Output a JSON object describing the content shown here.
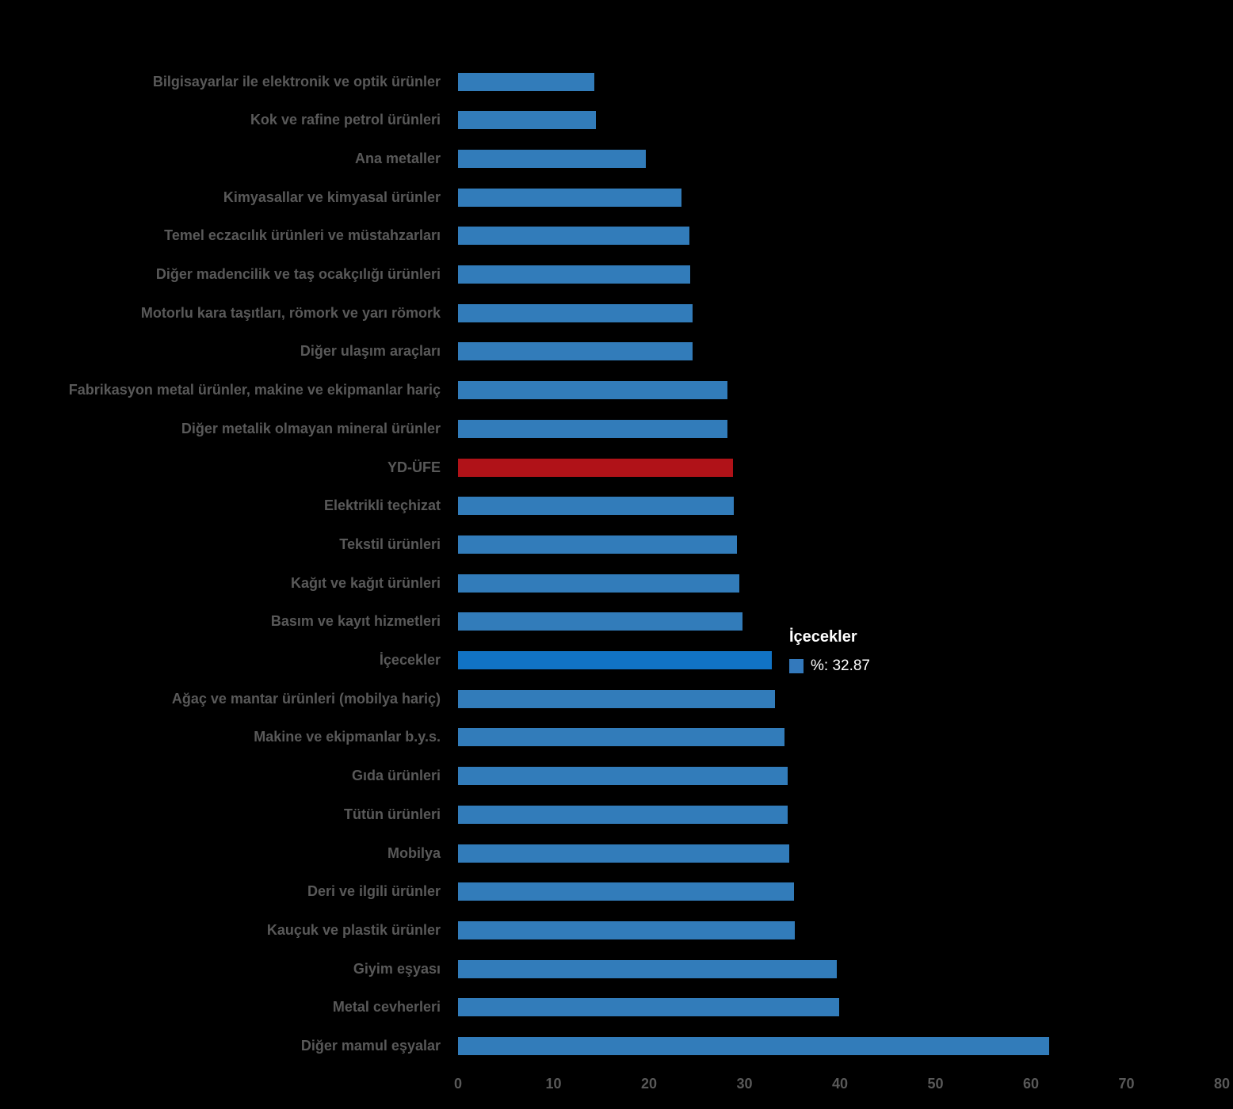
{
  "chart_data": {
    "type": "bar",
    "orientation": "horizontal",
    "title": "",
    "xlabel": "",
    "ylabel": "",
    "xlim": [
      0,
      80
    ],
    "x_ticks": [
      0,
      10,
      20,
      30,
      40,
      50,
      60,
      70,
      80
    ],
    "grid": false,
    "legend_position": "none",
    "categories": [
      "Bilgisayarlar ile elektronik ve optik ürünler",
      "Kok ve rafine petrol ürünleri",
      "Ana metaller",
      "Kimyasallar ve kimyasal ürünler",
      "Temel eczacılık ürünleri ve müstahzarları",
      "Diğer madencilik ve taş ocakçılığı ürünleri",
      "Motorlu kara taşıtları, römork ve yarı römork",
      "Diğer ulaşım araçları",
      "Fabrikasyon metal ürünler, makine ve ekipmanlar hariç",
      "Diğer metalik olmayan mineral ürünler",
      "YD-ÜFE",
      "Elektrikli teçhizat",
      "Tekstil ürünleri",
      "Kağıt ve kağıt ürünleri",
      "Basım ve kayıt hizmetleri",
      "İçecekler",
      "Ağaç ve mantar ürünleri (mobilya hariç)",
      "Makine ve ekipmanlar b.y.s.",
      "Gıda ürünleri",
      "Tütün ürünleri",
      "Mobilya",
      "Deri ve ilgili ürünler",
      "Kauçuk ve plastik ürünler",
      "Giyim eşyası",
      "Metal cevherleri",
      "Diğer mamul eşyalar"
    ],
    "values": [
      14.3,
      14.4,
      19.7,
      23.4,
      24.2,
      24.3,
      24.6,
      24.6,
      28.2,
      28.2,
      28.8,
      28.9,
      29.2,
      29.5,
      29.8,
      32.87,
      33.2,
      34.2,
      34.5,
      34.5,
      34.7,
      35.2,
      35.3,
      39.7,
      39.9,
      61.9
    ],
    "bar_color_roles": [
      "blue",
      "blue",
      "blue",
      "blue",
      "blue",
      "blue",
      "blue",
      "blue",
      "blue",
      "blue",
      "red",
      "blue",
      "blue",
      "blue",
      "blue",
      "highlight",
      "blue",
      "blue",
      "blue",
      "blue",
      "blue",
      "blue",
      "blue",
      "blue",
      "blue",
      "blue"
    ],
    "highlighted_category": "İçecekler",
    "red_category": "YD-ÜFE"
  },
  "tooltip": {
    "title": "İçecekler",
    "value_text": "%: 32.87"
  },
  "colors": {
    "background": "#000000",
    "bar_blue": "#327CBA",
    "bar_highlight": "#1173C5",
    "bar_red": "#B01218",
    "label_gray": "#595959",
    "tooltip_text": "#FFFFFF",
    "swatch_blue": "#3379BC"
  }
}
